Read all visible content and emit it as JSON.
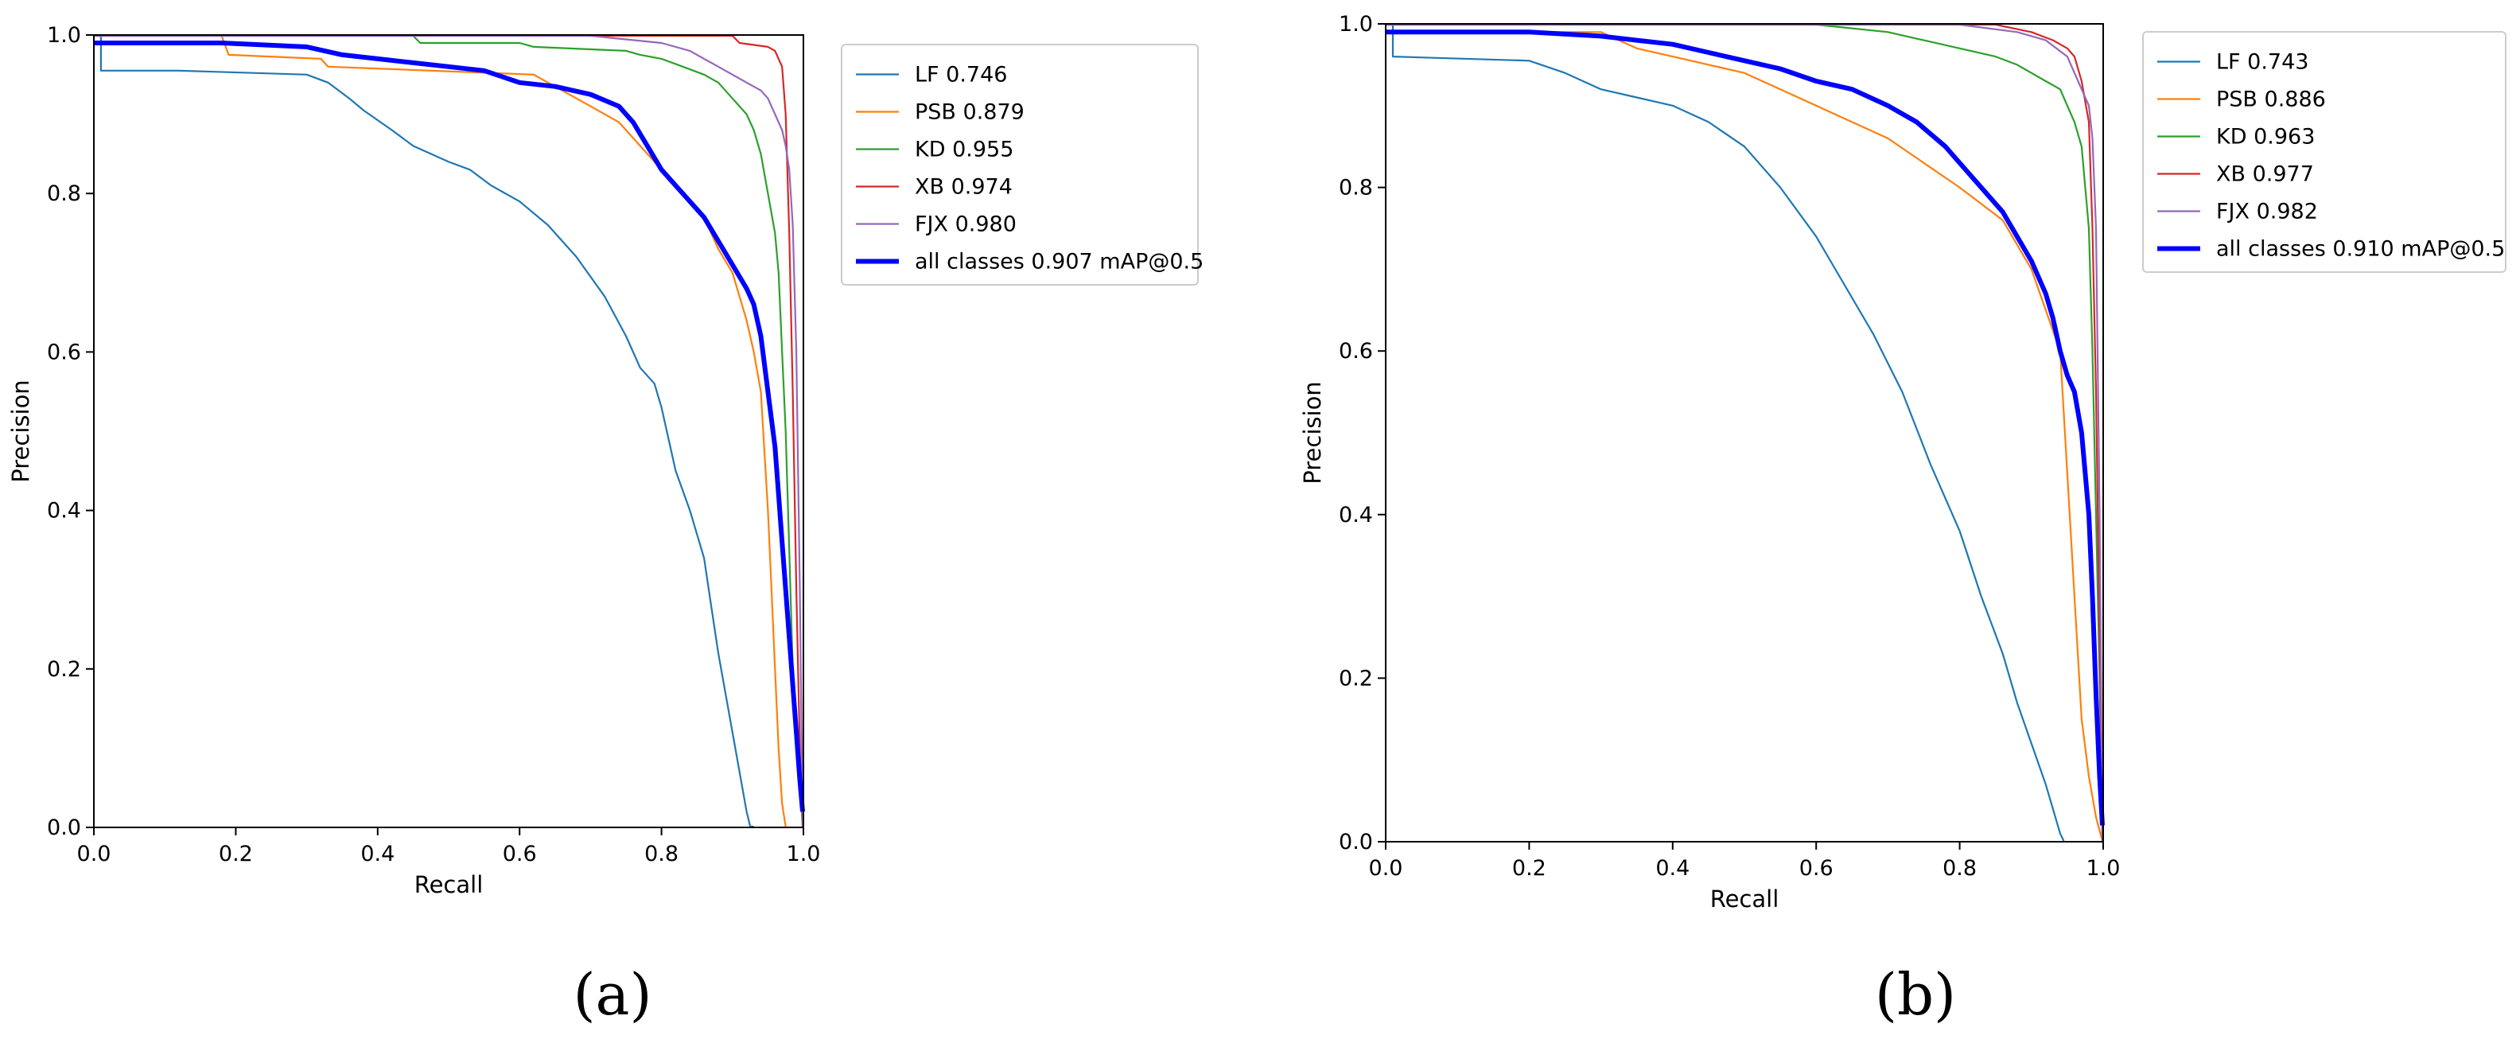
{
  "chart_data": [
    {
      "type": "line",
      "panel_label": "(a)",
      "xlabel": "Recall",
      "ylabel": "Precision",
      "xlim": [
        0.0,
        1.0
      ],
      "ylim": [
        0.0,
        1.0
      ],
      "x_ticks": [
        "0.0",
        "0.2",
        "0.4",
        "0.6",
        "0.8",
        "1.0"
      ],
      "y_ticks": [
        "0.0",
        "0.2",
        "0.4",
        "0.6",
        "0.8",
        "1.0"
      ],
      "legend_position": "outside-right",
      "series": [
        {
          "name": "LF 0.746",
          "color": "#1f77b4",
          "width": "thin",
          "x": [
            0,
            0.01,
            0.01,
            0.12,
            0.3,
            0.33,
            0.36,
            0.38,
            0.42,
            0.45,
            0.5,
            0.53,
            0.56,
            0.6,
            0.64,
            0.68,
            0.72,
            0.75,
            0.77,
            0.79,
            0.8,
            0.81,
            0.82,
            0.84,
            0.86,
            0.87,
            0.88,
            0.89,
            0.9,
            0.91,
            0.92,
            0.925,
            0.93
          ],
          "y": [
            1.0,
            1.0,
            0.955,
            0.955,
            0.95,
            0.94,
            0.92,
            0.905,
            0.88,
            0.86,
            0.84,
            0.83,
            0.81,
            0.79,
            0.76,
            0.72,
            0.67,
            0.62,
            0.58,
            0.56,
            0.53,
            0.49,
            0.45,
            0.4,
            0.34,
            0.28,
            0.22,
            0.17,
            0.12,
            0.07,
            0.02,
            0.0,
            0.0
          ]
        },
        {
          "name": "PSB 0.879",
          "color": "#ff7f0e",
          "width": "thin",
          "x": [
            0,
            0.18,
            0.19,
            0.32,
            0.33,
            0.62,
            0.66,
            0.7,
            0.74,
            0.77,
            0.8,
            0.82,
            0.84,
            0.86,
            0.88,
            0.9,
            0.91,
            0.92,
            0.93,
            0.94,
            0.95,
            0.955,
            0.96,
            0.965,
            0.97,
            0.975
          ],
          "y": [
            1.0,
            1.0,
            0.975,
            0.97,
            0.96,
            0.95,
            0.93,
            0.91,
            0.89,
            0.86,
            0.83,
            0.81,
            0.79,
            0.77,
            0.73,
            0.7,
            0.67,
            0.64,
            0.6,
            0.55,
            0.4,
            0.3,
            0.2,
            0.1,
            0.03,
            0.0
          ]
        },
        {
          "name": "KD 0.955",
          "color": "#2ca02c",
          "width": "thin",
          "x": [
            0,
            0.45,
            0.46,
            0.6,
            0.62,
            0.75,
            0.77,
            0.8,
            0.83,
            0.86,
            0.88,
            0.9,
            0.92,
            0.93,
            0.94,
            0.95,
            0.96,
            0.965,
            0.97,
            0.975,
            0.98,
            0.985,
            0.99,
            0.995,
            1.0
          ],
          "y": [
            1.0,
            1.0,
            0.99,
            0.99,
            0.985,
            0.98,
            0.975,
            0.97,
            0.96,
            0.95,
            0.94,
            0.92,
            0.9,
            0.88,
            0.85,
            0.8,
            0.75,
            0.7,
            0.6,
            0.5,
            0.35,
            0.2,
            0.12,
            0.06,
            0.0
          ]
        },
        {
          "name": "XB 0.974",
          "color": "#d62728",
          "width": "thin",
          "x": [
            0,
            0.9,
            0.91,
            0.95,
            0.96,
            0.97,
            0.975,
            0.98,
            0.985,
            0.99,
            0.995,
            1.0
          ],
          "y": [
            1.0,
            1.0,
            0.99,
            0.985,
            0.98,
            0.96,
            0.9,
            0.75,
            0.55,
            0.3,
            0.1,
            0.0
          ]
        },
        {
          "name": "FJX 0.980",
          "color": "#9467bd",
          "width": "thin",
          "x": [
            0,
            0.7,
            0.8,
            0.84,
            0.86,
            0.88,
            0.9,
            0.92,
            0.94,
            0.95,
            0.96,
            0.97,
            0.975,
            0.98,
            0.985,
            0.99,
            0.995,
            1.0
          ],
          "y": [
            1.0,
            1.0,
            0.99,
            0.98,
            0.97,
            0.96,
            0.95,
            0.94,
            0.93,
            0.92,
            0.9,
            0.88,
            0.86,
            0.83,
            0.76,
            0.6,
            0.3,
            0.0
          ]
        },
        {
          "name": "all classes 0.907 mAP@0.5",
          "color": "#0000ff",
          "width": "thick",
          "x": [
            0,
            0.18,
            0.3,
            0.35,
            0.4,
            0.45,
            0.5,
            0.55,
            0.6,
            0.65,
            0.7,
            0.74,
            0.76,
            0.78,
            0.8,
            0.82,
            0.84,
            0.86,
            0.88,
            0.9,
            0.92,
            0.93,
            0.94,
            0.95,
            0.96,
            0.965,
            0.97,
            0.975,
            0.98,
            0.985,
            0.99,
            0.995,
            1.0
          ],
          "y": [
            0.99,
            0.99,
            0.985,
            0.975,
            0.97,
            0.965,
            0.96,
            0.955,
            0.94,
            0.935,
            0.925,
            0.91,
            0.89,
            0.86,
            0.83,
            0.81,
            0.79,
            0.77,
            0.74,
            0.71,
            0.68,
            0.66,
            0.62,
            0.55,
            0.48,
            0.42,
            0.36,
            0.3,
            0.24,
            0.18,
            0.12,
            0.06,
            0.02
          ]
        }
      ]
    },
    {
      "type": "line",
      "panel_label": "(b)",
      "xlabel": "Recall",
      "ylabel": "Precision",
      "xlim": [
        0.0,
        1.0
      ],
      "ylim": [
        0.0,
        1.0
      ],
      "x_ticks": [
        "0.0",
        "0.2",
        "0.4",
        "0.6",
        "0.8",
        "1.0"
      ],
      "y_ticks": [
        "0.0",
        "0.2",
        "0.4",
        "0.6",
        "0.8",
        "1.0"
      ],
      "legend_position": "outside-right",
      "series": [
        {
          "name": "LF 0.743",
          "color": "#1f77b4",
          "width": "thin",
          "x": [
            0,
            0.01,
            0.01,
            0.2,
            0.25,
            0.3,
            0.35,
            0.4,
            0.45,
            0.5,
            0.55,
            0.6,
            0.64,
            0.68,
            0.72,
            0.76,
            0.8,
            0.83,
            0.86,
            0.88,
            0.9,
            0.92,
            0.93,
            0.94,
            0.945
          ],
          "y": [
            1.0,
            1.0,
            0.96,
            0.955,
            0.94,
            0.92,
            0.91,
            0.9,
            0.88,
            0.85,
            0.8,
            0.74,
            0.68,
            0.62,
            0.55,
            0.46,
            0.38,
            0.3,
            0.23,
            0.17,
            0.12,
            0.07,
            0.04,
            0.01,
            0.0
          ]
        },
        {
          "name": "PSB 0.886",
          "color": "#ff7f0e",
          "width": "thin",
          "x": [
            0,
            0.3,
            0.35,
            0.4,
            0.45,
            0.5,
            0.55,
            0.6,
            0.65,
            0.7,
            0.75,
            0.8,
            0.83,
            0.86,
            0.88,
            0.9,
            0.92,
            0.94,
            0.95,
            0.96,
            0.97,
            0.98,
            0.99,
            1.0
          ],
          "y": [
            0.99,
            0.99,
            0.97,
            0.96,
            0.95,
            0.94,
            0.92,
            0.9,
            0.88,
            0.86,
            0.83,
            0.8,
            0.78,
            0.76,
            0.73,
            0.7,
            0.65,
            0.6,
            0.45,
            0.3,
            0.15,
            0.08,
            0.03,
            0.0
          ]
        },
        {
          "name": "KD 0.963",
          "color": "#2ca02c",
          "width": "thin",
          "x": [
            0,
            0.6,
            0.7,
            0.75,
            0.8,
            0.85,
            0.88,
            0.9,
            0.92,
            0.94,
            0.95,
            0.96,
            0.97,
            0.98,
            0.985,
            0.99,
            0.995,
            1.0
          ],
          "y": [
            1.0,
            1.0,
            0.99,
            0.98,
            0.97,
            0.96,
            0.95,
            0.94,
            0.93,
            0.92,
            0.9,
            0.88,
            0.85,
            0.75,
            0.6,
            0.4,
            0.2,
            0.0
          ]
        },
        {
          "name": "XB 0.977",
          "color": "#d62728",
          "width": "thin",
          "x": [
            0,
            0.85,
            0.9,
            0.93,
            0.95,
            0.96,
            0.97,
            0.98,
            0.985,
            0.99,
            0.995,
            1.0
          ],
          "y": [
            1.0,
            1.0,
            0.99,
            0.98,
            0.97,
            0.96,
            0.93,
            0.88,
            0.75,
            0.55,
            0.25,
            0.0
          ]
        },
        {
          "name": "FJX 0.982",
          "color": "#9467bd",
          "width": "thin",
          "x": [
            0,
            0.8,
            0.88,
            0.92,
            0.95,
            0.96,
            0.97,
            0.98,
            0.985,
            0.99,
            0.995,
            1.0
          ],
          "y": [
            1.0,
            1.0,
            0.99,
            0.98,
            0.96,
            0.94,
            0.92,
            0.9,
            0.86,
            0.75,
            0.4,
            0.0
          ]
        },
        {
          "name": "all classes 0.910 mAP@0.5",
          "color": "#0000ff",
          "width": "thick",
          "x": [
            0,
            0.2,
            0.3,
            0.35,
            0.4,
            0.45,
            0.5,
            0.55,
            0.6,
            0.65,
            0.7,
            0.74,
            0.78,
            0.8,
            0.82,
            0.84,
            0.86,
            0.88,
            0.9,
            0.92,
            0.93,
            0.94,
            0.95,
            0.96,
            0.97,
            0.98,
            0.985,
            0.99,
            0.995,
            1.0
          ],
          "y": [
            0.99,
            0.99,
            0.985,
            0.98,
            0.975,
            0.965,
            0.955,
            0.945,
            0.93,
            0.92,
            0.9,
            0.88,
            0.85,
            0.83,
            0.81,
            0.79,
            0.77,
            0.74,
            0.71,
            0.67,
            0.64,
            0.6,
            0.57,
            0.55,
            0.5,
            0.4,
            0.3,
            0.18,
            0.08,
            0.02
          ]
        }
      ]
    }
  ]
}
